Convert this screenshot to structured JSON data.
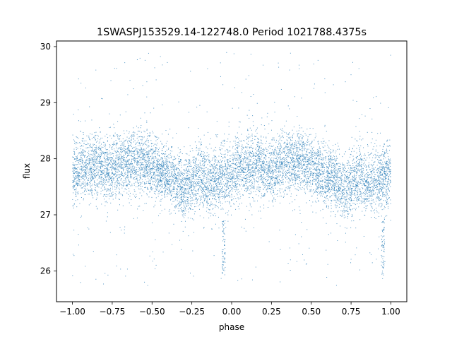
{
  "chart_data": {
    "type": "scatter",
    "title": "1SWASPJ153529.14-122748.0 Period 1021788.4375s",
    "xlabel": "phase",
    "ylabel": "flux",
    "xlim": [
      -1.1,
      1.1
    ],
    "ylim": [
      25.45,
      30.1
    ],
    "xticks": [
      -1.0,
      -0.75,
      -0.5,
      -0.25,
      0.0,
      0.25,
      0.5,
      0.75,
      1.0
    ],
    "xtick_labels": [
      "−1.00",
      "−0.75",
      "−0.50",
      "−0.25",
      "0.00",
      "0.25",
      "0.50",
      "0.75",
      "1.00"
    ],
    "yticks": [
      26,
      27,
      28,
      29,
      30
    ],
    "ytick_labels": [
      "26",
      "27",
      "28",
      "29",
      "30"
    ],
    "point_color": "#1f77b4",
    "grid": false,
    "trend_profile": {
      "phase": [
        0.0,
        0.05,
        0.1,
        0.15,
        0.2,
        0.25,
        0.3,
        0.35,
        0.4,
        0.45,
        0.5,
        0.55,
        0.6,
        0.65,
        0.7,
        0.75,
        0.8,
        0.85,
        0.9,
        0.95,
        1.0
      ],
      "median_flux": [
        27.7,
        27.85,
        27.85,
        27.9,
        27.85,
        27.8,
        27.9,
        27.95,
        27.95,
        27.95,
        27.85,
        27.75,
        27.7,
        27.6,
        27.45,
        27.55,
        27.7,
        27.55,
        27.6,
        27.7,
        27.7
      ],
      "scatter_sd": 0.28
    },
    "dips": [
      {
        "phase": -0.05,
        "min_flux": 25.9
      },
      {
        "phase": 0.95,
        "min_flux": 25.9
      }
    ],
    "flux_range": [
      25.7,
      29.9
    ]
  }
}
